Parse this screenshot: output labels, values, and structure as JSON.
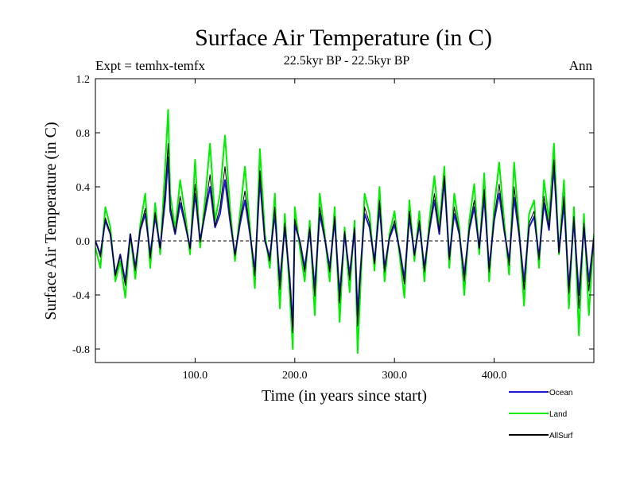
{
  "chart_data": {
    "type": "line",
    "title": "Surface Air Temperature (in C)",
    "subtitle": "22.5kyr BP - 22.5kyr BP",
    "left_label": "Expt = temhx-temfx",
    "right_label": "Ann",
    "xlabel": "Time (in years since start)",
    "ylabel": "Surface Air Temperature (in C)",
    "xlim": [
      0,
      500
    ],
    "ylim": [
      -0.9,
      1.2
    ],
    "x_ticks": [
      100,
      200,
      300,
      400
    ],
    "x_tick_labels": [
      "100.0",
      "200.0",
      "300.0",
      "400.0"
    ],
    "y_ticks": [
      -0.8,
      -0.4,
      0.0,
      0.4,
      0.8,
      1.2
    ],
    "y_tick_labels": [
      "-0.8",
      "-0.4",
      "0.0",
      "0.4",
      "0.8",
      "1.2"
    ],
    "zero_line": true,
    "series": [
      {
        "name": "Land",
        "color": "#00ee00",
        "x": [
          0,
          5,
          10,
          15,
          20,
          25,
          30,
          35,
          40,
          45,
          50,
          55,
          60,
          65,
          70,
          73,
          75,
          80,
          85,
          90,
          95,
          100,
          105,
          110,
          115,
          120,
          125,
          130,
          135,
          140,
          145,
          150,
          155,
          160,
          165,
          170,
          175,
          180,
          185,
          190,
          195,
          198,
          200,
          205,
          210,
          215,
          220,
          225,
          230,
          235,
          240,
          245,
          250,
          255,
          260,
          263,
          265,
          270,
          275,
          280,
          285,
          290,
          295,
          300,
          305,
          310,
          315,
          320,
          325,
          330,
          335,
          340,
          345,
          350,
          355,
          360,
          365,
          370,
          375,
          380,
          385,
          390,
          395,
          400,
          405,
          410,
          415,
          420,
          425,
          430,
          435,
          440,
          445,
          450,
          455,
          460,
          465,
          470,
          475,
          480,
          485,
          490,
          495,
          500
        ],
        "values": [
          -0.05,
          -0.2,
          0.25,
          0.1,
          -0.3,
          -0.15,
          -0.42,
          0.05,
          -0.28,
          0.12,
          0.35,
          -0.2,
          0.28,
          -0.1,
          0.55,
          0.97,
          0.35,
          0.08,
          0.45,
          0.2,
          -0.1,
          0.6,
          -0.05,
          0.3,
          0.72,
          0.15,
          0.35,
          0.78,
          0.25,
          -0.15,
          0.2,
          0.55,
          0.1,
          -0.35,
          0.68,
          0.05,
          -0.2,
          0.35,
          -0.5,
          0.2,
          -0.4,
          -0.8,
          0.25,
          -0.05,
          -0.3,
          0.15,
          -0.55,
          0.35,
          0.05,
          -0.3,
          0.25,
          -0.6,
          0.1,
          -0.38,
          0.15,
          -0.83,
          -0.5,
          0.35,
          0.2,
          -0.22,
          0.4,
          -0.3,
          0.05,
          0.22,
          -0.1,
          -0.42,
          0.3,
          -0.15,
          0.22,
          -0.3,
          0.15,
          0.48,
          0.1,
          0.55,
          -0.2,
          0.35,
          0.1,
          -0.4,
          0.15,
          0.42,
          -0.1,
          0.5,
          -0.3,
          0.25,
          0.58,
          0.15,
          -0.25,
          0.58,
          0.1,
          -0.48,
          0.2,
          0.3,
          -0.2,
          0.45,
          0.15,
          0.72,
          -0.1,
          0.45,
          -0.5,
          0.25,
          -0.7,
          0.2,
          -0.55,
          0.05
        ]
      },
      {
        "name": "Ocean",
        "color": "#1a1acc",
        "x": [
          0,
          5,
          10,
          15,
          20,
          25,
          30,
          35,
          40,
          45,
          50,
          55,
          60,
          65,
          70,
          73,
          75,
          80,
          85,
          90,
          95,
          100,
          105,
          110,
          115,
          120,
          125,
          130,
          135,
          140,
          145,
          150,
          155,
          160,
          165,
          170,
          175,
          180,
          185,
          190,
          195,
          198,
          200,
          205,
          210,
          215,
          220,
          225,
          230,
          235,
          240,
          245,
          250,
          255,
          260,
          263,
          265,
          270,
          275,
          280,
          285,
          290,
          295,
          300,
          305,
          310,
          315,
          320,
          325,
          330,
          335,
          340,
          345,
          350,
          355,
          360,
          365,
          370,
          375,
          380,
          385,
          390,
          395,
          400,
          405,
          410,
          415,
          420,
          425,
          430,
          435,
          440,
          445,
          450,
          455,
          460,
          465,
          470,
          475,
          480,
          485,
          490,
          495,
          500
        ],
        "values": [
          0.0,
          -0.1,
          0.15,
          0.05,
          -0.25,
          -0.1,
          -0.3,
          0.05,
          -0.2,
          0.08,
          0.2,
          -0.1,
          0.18,
          -0.05,
          0.3,
          0.62,
          0.22,
          0.05,
          0.28,
          0.12,
          -0.05,
          0.35,
          0.0,
          0.2,
          0.4,
          0.1,
          0.2,
          0.45,
          0.15,
          -0.1,
          0.12,
          0.3,
          0.05,
          -0.22,
          0.45,
          0.0,
          -0.12,
          0.2,
          -0.3,
          0.1,
          -0.28,
          -0.64,
          0.12,
          0.0,
          -0.2,
          0.08,
          -0.35,
          0.2,
          0.02,
          -0.2,
          0.15,
          -0.4,
          0.05,
          -0.25,
          0.08,
          -0.55,
          -0.3,
          0.2,
          0.1,
          -0.15,
          0.25,
          -0.2,
          0.02,
          0.12,
          -0.06,
          -0.28,
          0.18,
          -0.1,
          0.12,
          -0.2,
          0.08,
          0.3,
          0.05,
          0.45,
          -0.12,
          0.2,
          0.05,
          -0.25,
          0.08,
          0.25,
          -0.05,
          0.32,
          -0.2,
          0.15,
          0.35,
          0.08,
          -0.15,
          0.32,
          0.05,
          -0.3,
          0.1,
          0.18,
          -0.12,
          0.28,
          0.08,
          0.55,
          -0.08,
          0.28,
          -0.35,
          0.15,
          -0.4,
          0.1,
          -0.3,
          0.02
        ]
      },
      {
        "name": "AllSurf",
        "color": "#000000",
        "x": [
          0,
          5,
          10,
          15,
          20,
          25,
          30,
          35,
          40,
          45,
          50,
          55,
          60,
          65,
          70,
          73,
          75,
          80,
          85,
          90,
          95,
          100,
          105,
          110,
          115,
          120,
          125,
          130,
          135,
          140,
          145,
          150,
          155,
          160,
          165,
          170,
          175,
          180,
          185,
          190,
          195,
          198,
          200,
          205,
          210,
          215,
          220,
          225,
          230,
          235,
          240,
          245,
          250,
          255,
          260,
          263,
          265,
          270,
          275,
          280,
          285,
          290,
          295,
          300,
          305,
          310,
          315,
          320,
          325,
          330,
          335,
          340,
          345,
          350,
          355,
          360,
          365,
          370,
          375,
          380,
          385,
          390,
          395,
          400,
          405,
          410,
          415,
          420,
          425,
          430,
          435,
          440,
          445,
          450,
          455,
          460,
          465,
          470,
          475,
          480,
          485,
          490,
          495,
          500
        ],
        "values": [
          0.0,
          -0.12,
          0.17,
          0.06,
          -0.26,
          -0.11,
          -0.33,
          0.05,
          -0.22,
          0.09,
          0.24,
          -0.13,
          0.21,
          -0.06,
          0.38,
          0.72,
          0.26,
          0.06,
          0.33,
          0.14,
          -0.06,
          0.42,
          -0.01,
          0.23,
          0.49,
          0.11,
          0.25,
          0.55,
          0.18,
          -0.11,
          0.15,
          0.37,
          0.07,
          -0.26,
          0.52,
          0.01,
          -0.15,
          0.25,
          -0.36,
          0.13,
          -0.32,
          -0.68,
          0.16,
          -0.01,
          -0.23,
          0.1,
          -0.41,
          0.25,
          0.03,
          -0.23,
          0.18,
          -0.46,
          0.07,
          -0.29,
          0.1,
          -0.63,
          -0.36,
          0.25,
          0.13,
          -0.17,
          0.3,
          -0.23,
          0.03,
          0.15,
          -0.07,
          -0.32,
          0.22,
          -0.11,
          0.15,
          -0.23,
          0.1,
          0.35,
          0.07,
          0.48,
          -0.14,
          0.25,
          0.07,
          -0.3,
          0.1,
          0.3,
          -0.06,
          0.38,
          -0.23,
          0.18,
          0.42,
          0.1,
          -0.18,
          0.4,
          0.07,
          -0.36,
          0.13,
          0.22,
          -0.14,
          0.33,
          0.1,
          0.6,
          -0.09,
          0.33,
          -0.39,
          0.18,
          -0.5,
          0.13,
          -0.37,
          0.03
        ]
      }
    ],
    "legend": {
      "position": "bottom-right",
      "entries": [
        {
          "label": "Ocean",
          "color": "#1a1acc"
        },
        {
          "label": "Land",
          "color": "#00ee00"
        },
        {
          "label": "AllSurf",
          "color": "#000000"
        }
      ]
    }
  }
}
